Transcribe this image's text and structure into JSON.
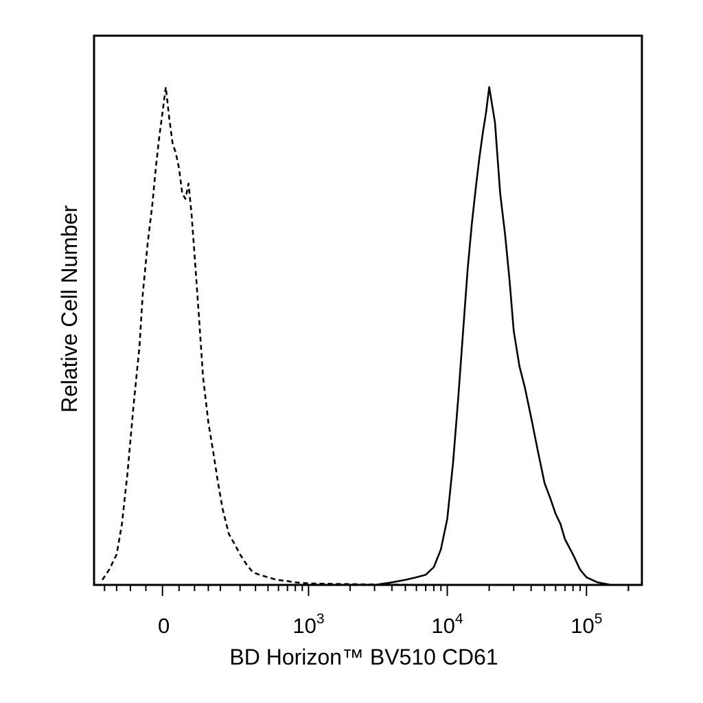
{
  "chart_data": {
    "type": "histogram",
    "title": "",
    "xlabel": "BD Horizon™ BV510 CD61",
    "ylabel": "Relative Cell Number",
    "x_scale": "biexponential",
    "xlim": [
      -250,
      250000
    ],
    "ylim": [
      0,
      100
    ],
    "grid": false,
    "legend": "none",
    "x_ticks": [
      {
        "value": 0,
        "base": "0",
        "exp": ""
      },
      {
        "value": 1000,
        "base": "10",
        "exp": "3"
      },
      {
        "value": 10000,
        "base": "10",
        "exp": "4"
      },
      {
        "value": 100000,
        "base": "10",
        "exp": "5"
      }
    ],
    "series": [
      {
        "style": "dashed",
        "color": "#000000",
        "x": [
          -210,
          -180,
          -150,
          -130,
          -110,
          -90,
          -70,
          -60,
          -45,
          -30,
          -20,
          -10,
          0,
          10,
          20,
          30,
          40,
          50,
          60,
          70,
          80,
          90,
          100,
          115,
          130,
          150,
          170,
          190,
          210,
          240,
          270,
          300,
          340,
          380,
          430,
          500,
          580,
          680,
          800,
          1000,
          1500,
          3000,
          8000
        ],
        "y": [
          1,
          3,
          6,
          12,
          22,
          35,
          47,
          57,
          67,
          75,
          82,
          88,
          93,
          98,
          92,
          87,
          85,
          82,
          77,
          76,
          79,
          73,
          65,
          53,
          41,
          32,
          26,
          20,
          15,
          10,
          8,
          6,
          4,
          2.5,
          2,
          1.5,
          1,
          0.8,
          0.5,
          0.3,
          0.2,
          0.1,
          0
        ]
      },
      {
        "style": "solid",
        "color": "#000000",
        "x": [
          3000,
          4000,
          5000,
          6000,
          7000,
          8000,
          9000,
          10000,
          11000,
          12000,
          13000,
          14000,
          15000,
          16000,
          17000,
          18000,
          19000,
          20000,
          22000,
          24000,
          26000,
          28000,
          30000,
          33000,
          36000,
          40000,
          45000,
          50000,
          55000,
          60000,
          65000,
          70000,
          80000,
          90000,
          100000,
          120000,
          150000
        ],
        "y": [
          0,
          0.5,
          1,
          1.5,
          2,
          3.5,
          7,
          13,
          24,
          37,
          50,
          62,
          71,
          78,
          84,
          89,
          93,
          98,
          91,
          77,
          69,
          60,
          50,
          43,
          39,
          33,
          26,
          20,
          17,
          14,
          12,
          9,
          6,
          3,
          1.5,
          0.5,
          0
        ]
      }
    ]
  }
}
